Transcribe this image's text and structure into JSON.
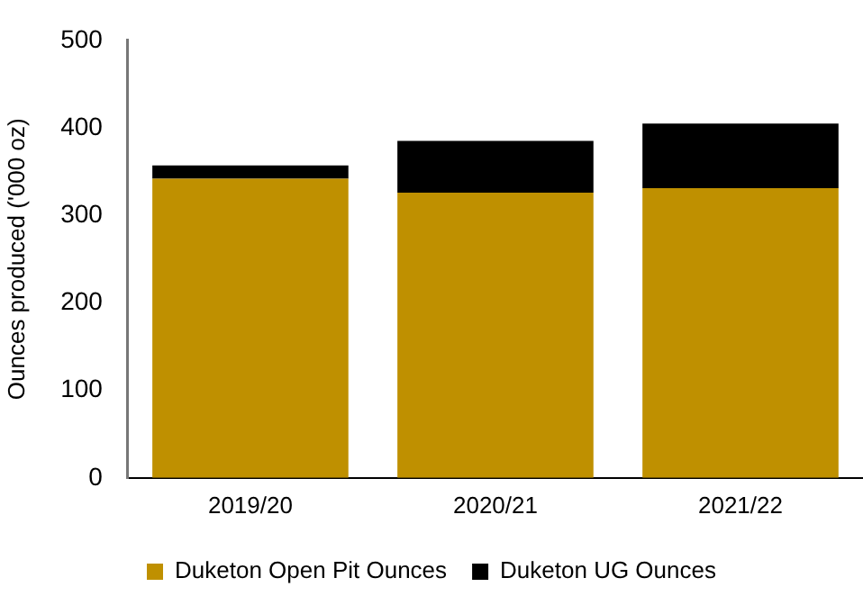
{
  "chart_data": {
    "type": "bar",
    "stacked": true,
    "ylabel": "Ounces produced ('000 oz)",
    "categories": [
      "2019/20",
      "2020/21",
      "2021/22"
    ],
    "series": [
      {
        "name": "Duketon Open Pit Ounces",
        "color": "#bf9000",
        "values": [
          342,
          326,
          331
        ]
      },
      {
        "name": "Duketon UG Ounces",
        "color": "#000000",
        "values": [
          15,
          59,
          74
        ]
      }
    ],
    "ylim": [
      0,
      500
    ],
    "yticks": [
      0,
      100,
      200,
      300,
      400,
      500
    ],
    "grid": false,
    "legend": "bottom"
  }
}
